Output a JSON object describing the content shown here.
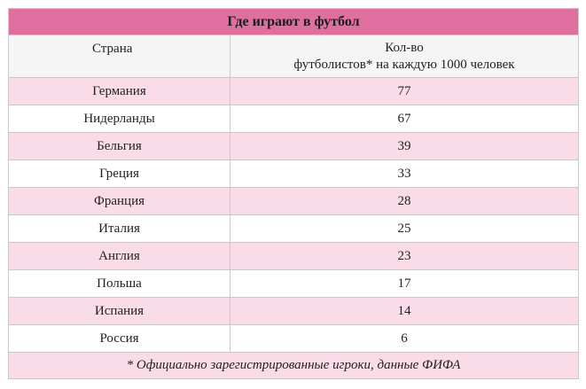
{
  "table": {
    "title": "Где играют в футбол",
    "header": {
      "country": "Страна",
      "count_line1": "Кол-во",
      "count_line2": "футболистов* на каждую 1000 человек"
    },
    "rows": [
      {
        "country": "Германия",
        "value": "77"
      },
      {
        "country": "Нидерланды",
        "value": "67"
      },
      {
        "country": "Бельгия",
        "value": "39"
      },
      {
        "country": "Греция",
        "value": "33"
      },
      {
        "country": "Франция",
        "value": "28"
      },
      {
        "country": "Италия",
        "value": "25"
      },
      {
        "country": "Англия",
        "value": "23"
      },
      {
        "country": "Польша",
        "value": "17"
      },
      {
        "country": "Испания",
        "value": "14"
      },
      {
        "country": "Россия",
        "value": "6"
      }
    ],
    "footnote": "* Официально зарегистрированные игроки, данные ФИФА"
  },
  "colors": {
    "title_bg": "#df6f9f",
    "row_pink": "#f9dce8",
    "row_white": "#ffffff",
    "header_bg": "#f5f5f5",
    "border": "#c9c9c9"
  }
}
